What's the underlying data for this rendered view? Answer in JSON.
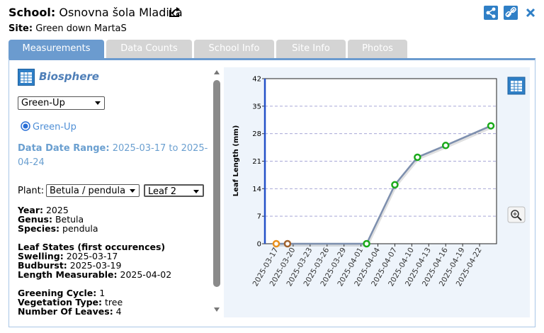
{
  "header": {
    "school_label": "School:",
    "school": "Osnovna šola Mladika",
    "site_label": "Site:",
    "site": "Green down MartaS"
  },
  "tabs": [
    "Measurements",
    "Data Counts",
    "School Info",
    "Site Info",
    "Photos"
  ],
  "panel": {
    "title": "Biosphere",
    "protocol_select": "Green-Up",
    "radio": "Green-Up",
    "date_range_label": "Data Date Range:",
    "date_range": "2025-03-17 to 2025-04-24",
    "plant_label": "Plant:",
    "plant": "Betula / pendula",
    "leaf": "Leaf 2",
    "info": [
      {
        "label": "Year:",
        "value": "2025"
      },
      {
        "label": "Genus:",
        "value": "Betula"
      },
      {
        "label": "Species:",
        "value": "pendula"
      }
    ],
    "leaf_states": {
      "title": "Leaf States (first occurences)",
      "items": [
        {
          "label": "Swelling:",
          "value": "2025-03-17"
        },
        {
          "label": "Budburst:",
          "value": "2025-03-19"
        },
        {
          "label": "Length Measurable:",
          "value": "2025-04-02"
        }
      ]
    },
    "cycle": [
      {
        "label": "Greening Cycle:",
        "value": "1"
      },
      {
        "label": "Vegetation Type:",
        "value": "tree"
      },
      {
        "label": "Number Of Leaves:",
        "value": "4"
      }
    ]
  },
  "chart_data": {
    "type": "line",
    "y_label": "Leaf Length (mm)",
    "x": [
      "2025-03-17",
      "2025-03-19",
      "2025-04-02",
      "2025-04-07",
      "2025-04-11",
      "2025-04-16",
      "2025-04-24"
    ],
    "series": [
      {
        "color": "#7d8fae",
        "values": [
          0,
          0,
          0,
          15,
          22,
          25,
          30
        ],
        "marker_colors": [
          "#e8901c",
          "#a0622e",
          "#1aaa1a",
          "#1aaa1a",
          "#1aaa1a",
          "#1aaa1a",
          "#1aaa1a"
        ]
      }
    ],
    "xlim": [
      "2025-03-15",
      "2025-04-25"
    ],
    "xticks": [
      "2025-03-17",
      "2025-03-20",
      "2025-03-23",
      "2025-03-26",
      "2025-03-29",
      "2025-04-01",
      "2025-04-04",
      "2025-04-07",
      "2025-04-10",
      "2025-04-13",
      "2025-04-16",
      "2025-04-19",
      "2025-04-22"
    ],
    "ylim": [
      0,
      42
    ],
    "yticks": [
      0,
      7,
      14,
      21,
      28,
      35,
      42
    ],
    "grid": true
  }
}
